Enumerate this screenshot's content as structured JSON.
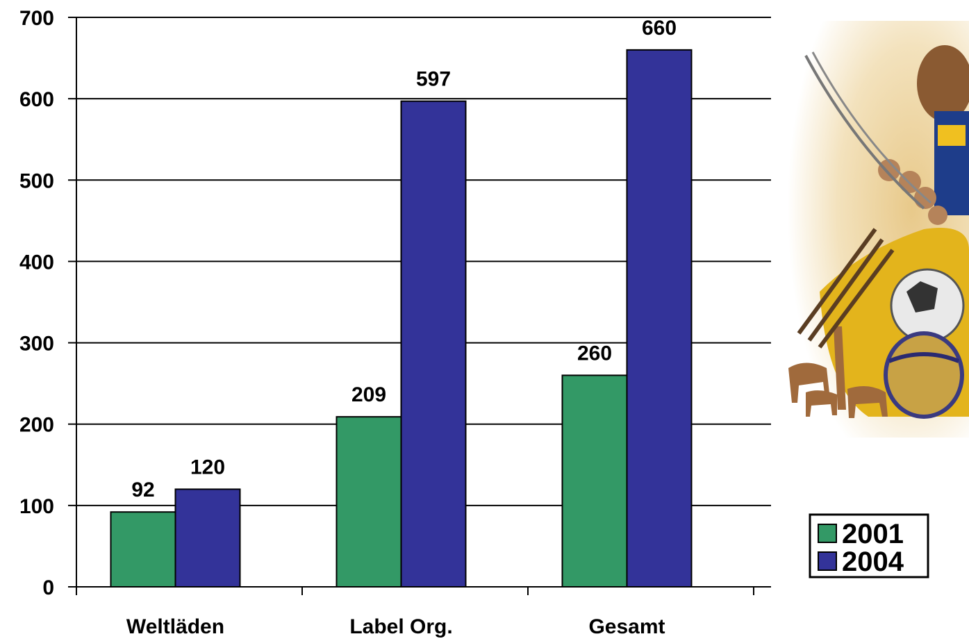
{
  "chart_data": {
    "type": "bar",
    "categories": [
      "Weltläden",
      "Label Org.",
      "Gesamt"
    ],
    "series": [
      {
        "name": "2001",
        "values": [
          92,
          209,
          260
        ],
        "color": "#339966"
      },
      {
        "name": "2004",
        "values": [
          120,
          597,
          660
        ],
        "color": "#333399"
      }
    ],
    "ylim": [
      0,
      700
    ],
    "yticks": [
      0,
      100,
      200,
      300,
      400,
      500,
      600,
      700
    ],
    "grid": true,
    "legend_position": "bottom-right",
    "data_labels": true
  }
}
